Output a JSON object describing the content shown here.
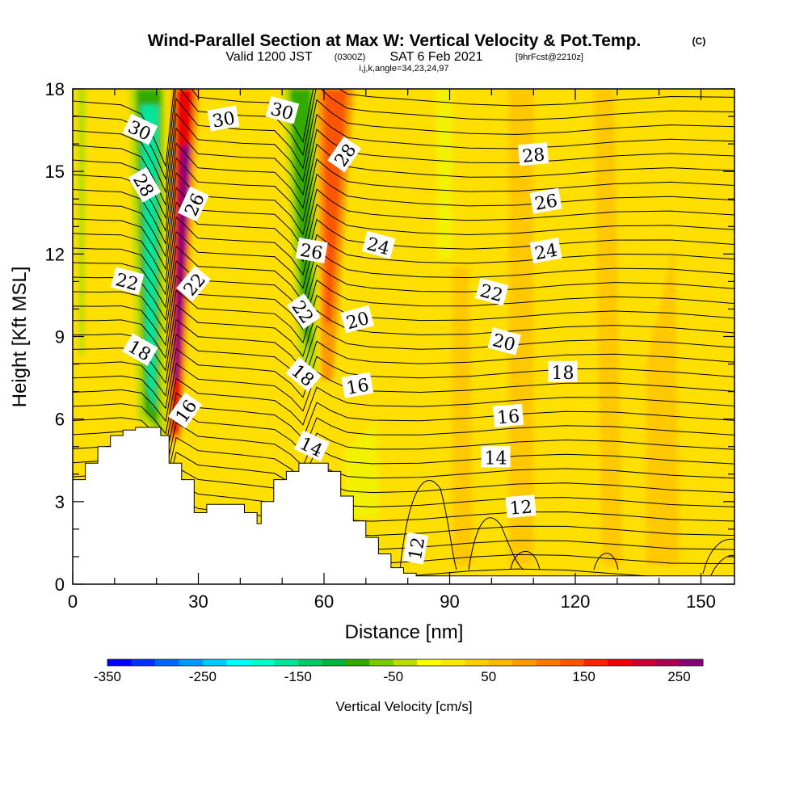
{
  "title": {
    "main": "Wind-Parallel Section at Max W: Vertical Velocity & Pot.Temp.",
    "mark": "(C)",
    "valid_prefix": "Valid 1200 JST",
    "valid_utc": "(0300Z)",
    "valid_date": "SAT 6 Feb 2021",
    "forecast": "[9hrFcst@2210z]",
    "grid_info": "i,j,k,angle=34,23,24,97"
  },
  "chart_data": {
    "type": "heatmap",
    "xlabel": "Distance [nm]",
    "ylabel": "Height [Kft MSL]",
    "xlim": [
      0,
      158
    ],
    "ylim": [
      0,
      18
    ],
    "x_ticks": [
      0,
      30,
      60,
      90,
      120,
      150
    ],
    "y_ticks": [
      0,
      3,
      6,
      9,
      12,
      15,
      18
    ],
    "colorbar": {
      "label": "Vertical Velocity [cm/s]",
      "min": -350,
      "max": 275,
      "step": 25,
      "tick_values": [
        -350,
        -250,
        -150,
        -50,
        50,
        150,
        250
      ],
      "tick_labels": [
        "-350",
        "-250",
        "-150",
        "-50",
        "50",
        "150",
        "250"
      ],
      "colors": [
        "#0000ff",
        "#0033ff",
        "#0066ff",
        "#0099ff",
        "#00ccff",
        "#00ffff",
        "#00ffcc",
        "#00e699",
        "#00cc66",
        "#00b33a",
        "#33aa00",
        "#77cc00",
        "#bbdd00",
        "#ffff00",
        "#ffe800",
        "#ffd000",
        "#ffb800",
        "#ff9900",
        "#ff7700",
        "#ff5500",
        "#ff2200",
        "#ee0000",
        "#cc0033",
        "#aa0055",
        "#880077"
      ]
    },
    "terrain": [
      [
        0,
        3.8
      ],
      [
        3,
        3.8
      ],
      [
        3,
        4.4
      ],
      [
        6,
        4.4
      ],
      [
        6,
        5.0
      ],
      [
        9,
        5.0
      ],
      [
        9,
        5.4
      ],
      [
        12,
        5.4
      ],
      [
        12,
        5.6
      ],
      [
        15,
        5.6
      ],
      [
        15,
        5.7
      ],
      [
        21,
        5.7
      ],
      [
        21,
        5.4
      ],
      [
        23,
        5.4
      ],
      [
        23,
        4.4
      ],
      [
        26,
        4.4
      ],
      [
        26,
        3.8
      ],
      [
        29,
        3.8
      ],
      [
        29,
        2.6
      ],
      [
        32,
        2.6
      ],
      [
        32,
        2.9
      ],
      [
        41,
        2.9
      ],
      [
        41,
        2.6
      ],
      [
        44,
        2.6
      ],
      [
        44,
        2.2
      ],
      [
        45,
        2.2
      ],
      [
        45,
        3.0
      ],
      [
        48,
        3.0
      ],
      [
        48,
        3.8
      ],
      [
        51,
        3.8
      ],
      [
        51,
        4.1
      ],
      [
        54,
        4.1
      ],
      [
        54,
        4.4
      ],
      [
        61,
        4.4
      ],
      [
        61,
        4.1
      ],
      [
        64,
        4.1
      ],
      [
        64,
        3.2
      ],
      [
        67,
        3.2
      ],
      [
        67,
        2.3
      ],
      [
        70,
        2.3
      ],
      [
        70,
        1.7
      ],
      [
        73,
        1.7
      ],
      [
        73,
        1.1
      ],
      [
        76,
        1.1
      ],
      [
        76,
        0.6
      ],
      [
        79,
        0.6
      ],
      [
        79,
        0.4
      ],
      [
        82,
        0.4
      ],
      [
        82,
        0.3
      ],
      [
        158,
        0.3
      ]
    ],
    "contours": [
      {
        "label": "30",
        "lx": 16,
        "ly": 16.5,
        "angle": 25
      },
      {
        "label": "30",
        "lx": 36,
        "ly": 16.9,
        "angle": -10
      },
      {
        "label": "30",
        "lx": 50,
        "ly": 17.2,
        "angle": 15
      },
      {
        "label": "28",
        "lx": 17,
        "ly": 14.5,
        "angle": 60
      },
      {
        "label": "28",
        "lx": 65,
        "ly": 15.6,
        "angle": -55
      },
      {
        "label": "28",
        "lx": 110,
        "ly": 15.6,
        "angle": -5
      },
      {
        "label": "26",
        "lx": 29,
        "ly": 13.8,
        "angle": -65
      },
      {
        "label": "26",
        "lx": 57,
        "ly": 12.1,
        "angle": 10
      },
      {
        "label": "26",
        "lx": 113,
        "ly": 13.9,
        "angle": -10
      },
      {
        "label": "24",
        "lx": 73,
        "ly": 12.3,
        "angle": 15
      },
      {
        "label": "24",
        "lx": 113,
        "ly": 12.1,
        "angle": -10
      },
      {
        "label": "22",
        "lx": 13,
        "ly": 11.0,
        "angle": 15
      },
      {
        "label": "22",
        "lx": 29,
        "ly": 10.9,
        "angle": -50
      },
      {
        "label": "22",
        "lx": 55,
        "ly": 9.9,
        "angle": 55
      },
      {
        "label": "22",
        "lx": 100,
        "ly": 10.6,
        "angle": 15
      },
      {
        "label": "20",
        "lx": 68,
        "ly": 9.6,
        "angle": -15
      },
      {
        "label": "20",
        "lx": 103,
        "ly": 8.8,
        "angle": 15
      },
      {
        "label": "18",
        "lx": 16,
        "ly": 8.5,
        "angle": 30
      },
      {
        "label": "18",
        "lx": 55,
        "ly": 7.6,
        "angle": 40
      },
      {
        "label": "18",
        "lx": 117,
        "ly": 7.7,
        "angle": 0
      },
      {
        "label": "16",
        "lx": 27,
        "ly": 6.3,
        "angle": -55
      },
      {
        "label": "16",
        "lx": 68,
        "ly": 7.2,
        "angle": -10
      },
      {
        "label": "16",
        "lx": 104,
        "ly": 6.1,
        "angle": -5
      },
      {
        "label": "14",
        "lx": 57,
        "ly": 5.0,
        "angle": 25
      },
      {
        "label": "14",
        "lx": 101,
        "ly": 4.6,
        "angle": 0
      },
      {
        "label": "12",
        "lx": 107,
        "ly": 2.8,
        "angle": -5
      },
      {
        "label": "12",
        "lx": 82,
        "ly": 1.3,
        "angle": -80
      }
    ]
  }
}
